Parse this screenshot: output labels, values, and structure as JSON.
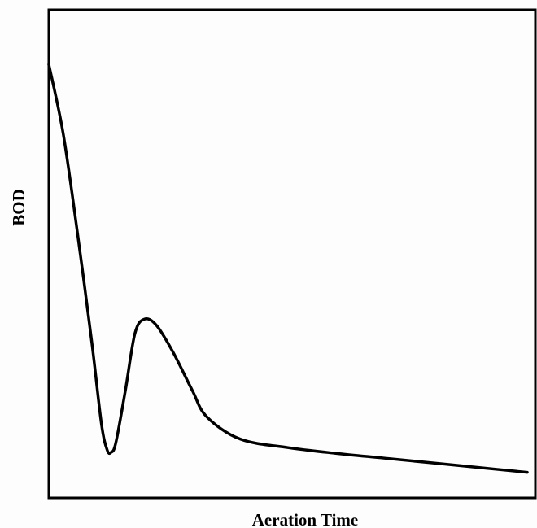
{
  "chart_data": {
    "type": "line",
    "title": "",
    "xlabel": "Aeration Time",
    "ylabel": "BOD",
    "x_ticks": [],
    "y_ticks": [],
    "grid": false,
    "legend": "none",
    "xlim": [
      0,
      100
    ],
    "ylim": [
      0,
      100
    ],
    "series": [
      {
        "values": [
          {
            "x": 0,
            "y": 88.5
          },
          {
            "x": 3,
            "y": 74
          },
          {
            "x": 6,
            "y": 53
          },
          {
            "x": 9,
            "y": 30
          },
          {
            "x": 11,
            "y": 13
          },
          {
            "x": 12.2,
            "y": 7.5
          },
          {
            "x": 13,
            "y": 7
          },
          {
            "x": 14,
            "y": 9
          },
          {
            "x": 16,
            "y": 20
          },
          {
            "x": 18,
            "y": 32
          },
          {
            "x": 20,
            "y": 35
          },
          {
            "x": 22.5,
            "y": 33.7
          },
          {
            "x": 26,
            "y": 28
          },
          {
            "x": 30,
            "y": 20
          },
          {
            "x": 33,
            "y": 14.5
          },
          {
            "x": 40,
            "y": 9.8
          },
          {
            "x": 50,
            "y": 8
          },
          {
            "x": 60,
            "y": 6.8
          },
          {
            "x": 70,
            "y": 5.8
          },
          {
            "x": 80,
            "y": 4.8
          },
          {
            "x": 90,
            "y": 3.8
          },
          {
            "x": 100,
            "y": 2.8
          }
        ]
      }
    ]
  },
  "colors": {
    "line": "#000000",
    "axis": "#000000",
    "background": "#fdfdfd"
  }
}
